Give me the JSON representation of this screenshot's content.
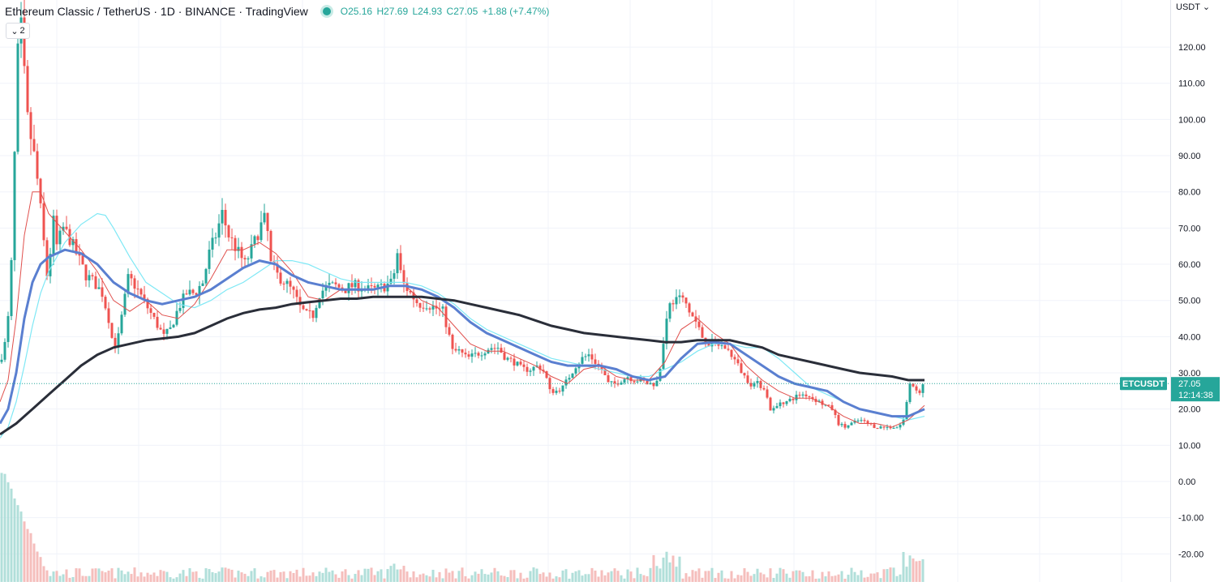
{
  "header": {
    "symbol_line": "Ethereum Classic / TetherUS · 1D · BINANCE · TradingView",
    "open": "O25.16",
    "high": "H27.69",
    "low": "L24.93",
    "close": "C27.05",
    "change": "+1.88 (+7.47%)",
    "indicator_toggle_count": "2",
    "currency": "USDT"
  },
  "price_tag": {
    "symbol": "ETCUSDT",
    "price": "27.05",
    "countdown": "12:14:38"
  },
  "colors": {
    "up": "#26a69a",
    "down": "#ef5350",
    "ma_fast": "#e0504d",
    "ma_mid": "#5a7fd0",
    "ma_cyan": "#7fe8f5",
    "ma_slow": "#2a2e39",
    "grid": "#f0f3fa",
    "price_line": "#26a69a"
  },
  "chart_data": {
    "type": "candlestick",
    "title": "Ethereum Classic / TetherUS · 1D · BINANCE",
    "ylim": [
      -23,
      127
    ],
    "y_ticks": [
      "120.00",
      "110.00",
      "100.00",
      "90.00",
      "80.00",
      "70.00",
      "60.00",
      "50.00",
      "40.00",
      "30.00",
      "20.00",
      "10.00",
      "0.00",
      "-10.00",
      "-20.00"
    ],
    "current_price": 27.05,
    "price_path": [
      [
        0,
        33
      ],
      [
        6,
        38
      ],
      [
        10,
        45
      ],
      [
        14,
        60
      ],
      [
        18,
        90
      ],
      [
        22,
        118
      ],
      [
        26,
        125
      ],
      [
        30,
        112
      ],
      [
        34,
        100
      ],
      [
        38,
        95
      ],
      [
        42,
        90
      ],
      [
        48,
        80
      ],
      [
        52,
        70
      ],
      [
        56,
        62
      ],
      [
        60,
        52
      ],
      [
        64,
        75
      ],
      [
        70,
        65
      ],
      [
        78,
        70
      ],
      [
        86,
        67
      ],
      [
        96,
        62
      ],
      [
        106,
        57
      ],
      [
        116,
        55
      ],
      [
        126,
        52
      ],
      [
        134,
        45
      ],
      [
        140,
        37
      ],
      [
        146,
        40
      ],
      [
        152,
        48
      ],
      [
        158,
        56
      ],
      [
        164,
        55
      ],
      [
        172,
        52
      ],
      [
        182,
        48
      ],
      [
        192,
        44
      ],
      [
        202,
        40
      ],
      [
        210,
        42
      ],
      [
        220,
        48
      ],
      [
        230,
        52
      ],
      [
        240,
        52
      ],
      [
        250,
        55
      ],
      [
        258,
        63
      ],
      [
        266,
        68
      ],
      [
        274,
        74
      ],
      [
        282,
        68
      ],
      [
        292,
        64
      ],
      [
        302,
        60
      ],
      [
        312,
        65
      ],
      [
        320,
        70
      ],
      [
        328,
        73
      ],
      [
        334,
        60
      ],
      [
        342,
        57
      ],
      [
        352,
        55
      ],
      [
        362,
        52
      ],
      [
        370,
        48
      ],
      [
        378,
        46
      ],
      [
        386,
        46
      ],
      [
        394,
        52
      ],
      [
        404,
        54
      ],
      [
        414,
        54
      ],
      [
        424,
        53
      ],
      [
        434,
        54
      ],
      [
        444,
        54
      ],
      [
        454,
        53
      ],
      [
        464,
        53
      ],
      [
        474,
        54
      ],
      [
        484,
        55
      ],
      [
        490,
        63
      ],
      [
        496,
        55
      ],
      [
        506,
        52
      ],
      [
        516,
        49
      ],
      [
        526,
        49
      ],
      [
        536,
        48
      ],
      [
        546,
        47
      ],
      [
        552,
        42
      ],
      [
        558,
        36
      ],
      [
        566,
        36
      ],
      [
        576,
        34
      ],
      [
        586,
        35
      ],
      [
        596,
        36
      ],
      [
        604,
        37
      ],
      [
        614,
        37
      ],
      [
        624,
        34
      ],
      [
        634,
        33
      ],
      [
        644,
        31
      ],
      [
        654,
        31
      ],
      [
        664,
        32
      ],
      [
        672,
        30
      ],
      [
        678,
        25
      ],
      [
        686,
        25
      ],
      [
        694,
        26
      ],
      [
        702,
        29
      ],
      [
        710,
        32
      ],
      [
        718,
        34
      ],
      [
        726,
        35
      ],
      [
        734,
        33
      ],
      [
        742,
        31
      ],
      [
        750,
        27
      ],
      [
        758,
        27
      ],
      [
        766,
        28
      ],
      [
        774,
        29
      ],
      [
        782,
        28
      ],
      [
        790,
        28
      ],
      [
        798,
        27
      ],
      [
        806,
        27
      ],
      [
        812,
        28
      ],
      [
        818,
        38
      ],
      [
        822,
        46
      ],
      [
        828,
        50
      ],
      [
        836,
        50
      ],
      [
        844,
        50
      ],
      [
        850,
        47
      ],
      [
        858,
        44
      ],
      [
        866,
        40
      ],
      [
        874,
        38
      ],
      [
        884,
        38
      ],
      [
        894,
        37
      ],
      [
        902,
        35
      ],
      [
        910,
        32
      ],
      [
        918,
        29
      ],
      [
        926,
        27
      ],
      [
        934,
        27
      ],
      [
        942,
        26
      ],
      [
        950,
        20
      ],
      [
        956,
        20
      ],
      [
        962,
        22
      ],
      [
        970,
        22
      ],
      [
        978,
        23
      ],
      [
        986,
        24
      ],
      [
        994,
        24
      ],
      [
        1002,
        23
      ],
      [
        1010,
        22
      ],
      [
        1018,
        21
      ],
      [
        1026,
        20
      ],
      [
        1034,
        16
      ],
      [
        1042,
        15
      ],
      [
        1050,
        16
      ],
      [
        1060,
        17
      ],
      [
        1070,
        16
      ],
      [
        1080,
        15
      ],
      [
        1090,
        15
      ],
      [
        1100,
        15
      ],
      [
        1108,
        15
      ],
      [
        1114,
        17
      ],
      [
        1118,
        22
      ],
      [
        1122,
        27
      ],
      [
        1128,
        25
      ],
      [
        1134,
        25
      ],
      [
        1140,
        27
      ]
    ],
    "ma_fast_path": [
      [
        0,
        22
      ],
      [
        10,
        28
      ],
      [
        20,
        45
      ],
      [
        30,
        68
      ],
      [
        40,
        80
      ],
      [
        50,
        80
      ],
      [
        60,
        74
      ],
      [
        80,
        69
      ],
      [
        100,
        64
      ],
      [
        120,
        58
      ],
      [
        140,
        50
      ],
      [
        160,
        47
      ],
      [
        180,
        50
      ],
      [
        200,
        46
      ],
      [
        220,
        45
      ],
      [
        240,
        49
      ],
      [
        260,
        56
      ],
      [
        280,
        64
      ],
      [
        300,
        64
      ],
      [
        320,
        66
      ],
      [
        340,
        63
      ],
      [
        360,
        58
      ],
      [
        380,
        51
      ],
      [
        400,
        50
      ],
      [
        420,
        53
      ],
      [
        440,
        53
      ],
      [
        460,
        53
      ],
      [
        480,
        54
      ],
      [
        500,
        54
      ],
      [
        520,
        50
      ],
      [
        540,
        48
      ],
      [
        560,
        43
      ],
      [
        580,
        38
      ],
      [
        600,
        36
      ],
      [
        620,
        36
      ],
      [
        640,
        34
      ],
      [
        660,
        32
      ],
      [
        680,
        29
      ],
      [
        700,
        27
      ],
      [
        720,
        31
      ],
      [
        740,
        32
      ],
      [
        760,
        29
      ],
      [
        780,
        28
      ],
      [
        800,
        28
      ],
      [
        820,
        33
      ],
      [
        840,
        42
      ],
      [
        860,
        45
      ],
      [
        880,
        41
      ],
      [
        900,
        38
      ],
      [
        920,
        32
      ],
      [
        940,
        28
      ],
      [
        960,
        25
      ],
      [
        980,
        23
      ],
      [
        1000,
        23
      ],
      [
        1020,
        21
      ],
      [
        1040,
        18
      ],
      [
        1060,
        16
      ],
      [
        1080,
        16
      ],
      [
        1100,
        15
      ],
      [
        1120,
        17
      ],
      [
        1140,
        21
      ]
    ],
    "ma_mid_path": [
      [
        0,
        16
      ],
      [
        10,
        20
      ],
      [
        20,
        30
      ],
      [
        30,
        45
      ],
      [
        40,
        55
      ],
      [
        50,
        60
      ],
      [
        60,
        62
      ],
      [
        80,
        64
      ],
      [
        100,
        63
      ],
      [
        120,
        60
      ],
      [
        140,
        55
      ],
      [
        160,
        52
      ],
      [
        180,
        50
      ],
      [
        200,
        49
      ],
      [
        220,
        50
      ],
      [
        240,
        51
      ],
      [
        260,
        53
      ],
      [
        280,
        56
      ],
      [
        300,
        59
      ],
      [
        320,
        61
      ],
      [
        340,
        60
      ],
      [
        360,
        57
      ],
      [
        380,
        55
      ],
      [
        400,
        54
      ],
      [
        420,
        53
      ],
      [
        440,
        53
      ],
      [
        460,
        53
      ],
      [
        480,
        54
      ],
      [
        500,
        54
      ],
      [
        520,
        53
      ],
      [
        540,
        51
      ],
      [
        560,
        48
      ],
      [
        580,
        44
      ],
      [
        600,
        41
      ],
      [
        620,
        39
      ],
      [
        640,
        37
      ],
      [
        660,
        35
      ],
      [
        680,
        33
      ],
      [
        700,
        32
      ],
      [
        720,
        32
      ],
      [
        740,
        32
      ],
      [
        760,
        31
      ],
      [
        780,
        29
      ],
      [
        800,
        28
      ],
      [
        820,
        29
      ],
      [
        840,
        34
      ],
      [
        860,
        38
      ],
      [
        880,
        38.5
      ],
      [
        900,
        38
      ],
      [
        920,
        35
      ],
      [
        940,
        32
      ],
      [
        960,
        29
      ],
      [
        980,
        27
      ],
      [
        1000,
        26
      ],
      [
        1020,
        25
      ],
      [
        1040,
        22
      ],
      [
        1060,
        20
      ],
      [
        1080,
        19
      ],
      [
        1100,
        18
      ],
      [
        1120,
        18
      ],
      [
        1140,
        20
      ]
    ],
    "ma_cyan_path": [
      [
        0,
        12
      ],
      [
        10,
        15
      ],
      [
        20,
        22
      ],
      [
        30,
        32
      ],
      [
        40,
        43
      ],
      [
        50,
        52
      ],
      [
        60,
        58
      ],
      [
        80,
        66
      ],
      [
        100,
        71
      ],
      [
        120,
        74
      ],
      [
        130,
        73.5
      ],
      [
        140,
        70
      ],
      [
        160,
        62
      ],
      [
        180,
        55
      ],
      [
        200,
        52
      ],
      [
        220,
        49
      ],
      [
        240,
        48
      ],
      [
        260,
        50
      ],
      [
        280,
        53
      ],
      [
        300,
        55
      ],
      [
        320,
        58
      ],
      [
        340,
        61
      ],
      [
        360,
        61
      ],
      [
        380,
        60
      ],
      [
        400,
        58
      ],
      [
        420,
        56
      ],
      [
        440,
        55
      ],
      [
        460,
        55
      ],
      [
        480,
        55
      ],
      [
        500,
        55
      ],
      [
        520,
        54
      ],
      [
        540,
        52
      ],
      [
        560,
        49
      ],
      [
        580,
        45
      ],
      [
        600,
        42
      ],
      [
        620,
        40
      ],
      [
        640,
        38
      ],
      [
        660,
        36
      ],
      [
        680,
        34
      ],
      [
        700,
        33
      ],
      [
        720,
        32
      ],
      [
        740,
        31
      ],
      [
        760,
        30
      ],
      [
        780,
        29
      ],
      [
        800,
        29
      ],
      [
        820,
        31
      ],
      [
        840,
        33
      ],
      [
        860,
        36
      ],
      [
        880,
        38
      ],
      [
        900,
        38
      ],
      [
        920,
        37
      ],
      [
        940,
        37
      ],
      [
        960,
        34
      ],
      [
        980,
        30
      ],
      [
        1000,
        26
      ],
      [
        1020,
        24
      ],
      [
        1040,
        22
      ],
      [
        1060,
        20
      ],
      [
        1080,
        19
      ],
      [
        1100,
        18
      ],
      [
        1120,
        17
      ],
      [
        1140,
        18
      ]
    ],
    "ma_slow_path": [
      [
        0,
        13
      ],
      [
        20,
        16
      ],
      [
        40,
        20
      ],
      [
        60,
        24
      ],
      [
        80,
        28
      ],
      [
        100,
        32
      ],
      [
        120,
        35
      ],
      [
        140,
        37
      ],
      [
        160,
        38
      ],
      [
        180,
        39
      ],
      [
        200,
        39.5
      ],
      [
        220,
        40
      ],
      [
        240,
        41
      ],
      [
        260,
        43
      ],
      [
        280,
        45
      ],
      [
        300,
        46.5
      ],
      [
        320,
        47.5
      ],
      [
        340,
        48
      ],
      [
        360,
        49
      ],
      [
        380,
        49.5
      ],
      [
        400,
        50
      ],
      [
        420,
        50.5
      ],
      [
        440,
        50.5
      ],
      [
        460,
        51
      ],
      [
        480,
        51
      ],
      [
        500,
        51
      ],
      [
        520,
        51
      ],
      [
        540,
        50.5
      ],
      [
        560,
        50
      ],
      [
        580,
        49
      ],
      [
        600,
        48
      ],
      [
        620,
        47
      ],
      [
        640,
        46
      ],
      [
        660,
        44.5
      ],
      [
        680,
        43
      ],
      [
        700,
        42
      ],
      [
        720,
        41
      ],
      [
        740,
        40.5
      ],
      [
        760,
        40
      ],
      [
        780,
        39.5
      ],
      [
        800,
        39
      ],
      [
        820,
        38.5
      ],
      [
        840,
        38.5
      ],
      [
        860,
        39
      ],
      [
        880,
        39
      ],
      [
        900,
        39
      ],
      [
        920,
        38
      ],
      [
        940,
        37
      ],
      [
        960,
        35
      ],
      [
        980,
        34
      ],
      [
        1000,
        33
      ],
      [
        1020,
        32
      ],
      [
        1040,
        31
      ],
      [
        1060,
        30
      ],
      [
        1080,
        29.5
      ],
      [
        1100,
        29
      ],
      [
        1120,
        28
      ],
      [
        1140,
        28
      ]
    ]
  }
}
